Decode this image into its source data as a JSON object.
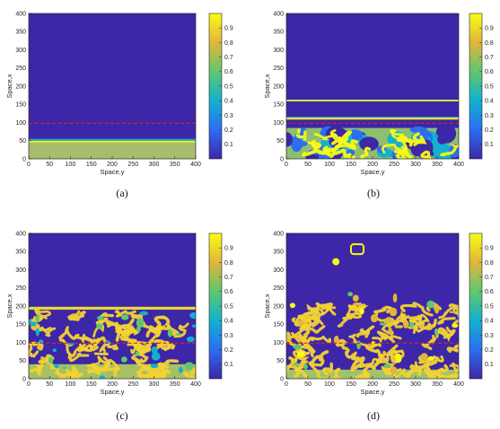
{
  "chart_data": [
    {
      "type": "heatmap",
      "caption": "(a)",
      "xlabel": "Space,y",
      "ylabel": "Space,x",
      "xlim": [
        0,
        400
      ],
      "ylim": [
        0,
        400
      ],
      "xticks": [
        0,
        50,
        100,
        150,
        200,
        250,
        300,
        350,
        400
      ],
      "yticks": [
        0,
        50,
        100,
        150,
        200,
        250,
        300,
        350,
        400
      ],
      "colorbar_ticks": [
        0.1,
        0.2,
        0.3,
        0.4,
        0.5,
        0.6,
        0.7,
        0.8,
        0.9
      ],
      "colorbar_range": [
        0,
        1
      ],
      "colormap": [
        "#3e26a8",
        "#2b6ef2",
        "#12b1cf",
        "#5fc86e",
        "#e0b63b",
        "#f9fb14"
      ],
      "background_value": 0.02,
      "reference_line": {
        "x": 98,
        "color": "#d62728",
        "style": "dashed"
      },
      "pattern": "flat band: x 0-45 at 0.6, bright front at x 45-55"
    },
    {
      "type": "heatmap",
      "caption": "(b)",
      "xlabel": "Space,y",
      "ylabel": "Space,x",
      "xlim": [
        0,
        400
      ],
      "ylim": [
        0,
        400
      ],
      "xticks": [
        0,
        50,
        100,
        150,
        200,
        250,
        300,
        350,
        400
      ],
      "yticks": [
        0,
        50,
        100,
        150,
        200,
        250,
        300,
        350,
        400
      ],
      "colorbar_ticks": [
        0.1,
        0.2,
        0.3,
        0.4,
        0.5,
        0.6,
        0.7,
        0.8,
        0.9
      ],
      "colorbar_range": [
        0,
        1
      ],
      "colormap": [
        "#3e26a8",
        "#2b6ef2",
        "#12b1cf",
        "#5fc86e",
        "#e0b63b",
        "#f9fb14"
      ],
      "background_value": 0.02,
      "reference_line": {
        "x": 98,
        "color": "#d62728",
        "style": "dashed"
      },
      "pattern": "patterned zone x 0-85, bands at x 110 and x 160"
    },
    {
      "type": "heatmap",
      "caption": "(c)",
      "xlabel": "Space,y",
      "ylabel": "Space,x",
      "xlim": [
        0,
        400
      ],
      "ylim": [
        0,
        400
      ],
      "xticks": [
        0,
        50,
        100,
        150,
        200,
        250,
        300,
        350,
        400
      ],
      "yticks": [
        0,
        50,
        100,
        150,
        200,
        250,
        300,
        350,
        400
      ],
      "colorbar_ticks": [
        0.1,
        0.2,
        0.3,
        0.4,
        0.5,
        0.6,
        0.7,
        0.8,
        0.9
      ],
      "colorbar_range": [
        0,
        1
      ],
      "colormap": [
        "#3e26a8",
        "#2b6ef2",
        "#12b1cf",
        "#5fc86e",
        "#e0b63b",
        "#f9fb14"
      ],
      "background_value": 0.02,
      "reference_line": {
        "x": 98,
        "color": "#d62728",
        "style": "dashed"
      },
      "pattern": "labyrinth pattern x 0-185, band at x 195"
    },
    {
      "type": "heatmap",
      "caption": "(d)",
      "xlabel": "Space,y",
      "ylabel": "Space,x",
      "xlim": [
        0,
        400
      ],
      "ylim": [
        0,
        400
      ],
      "xticks": [
        0,
        50,
        100,
        150,
        200,
        250,
        300,
        350,
        400
      ],
      "yticks": [
        0,
        50,
        100,
        150,
        200,
        250,
        300,
        350,
        400
      ],
      "colorbar_ticks": [
        0.1,
        0.2,
        0.3,
        0.4,
        0.5,
        0.6,
        0.7,
        0.8,
        0.9
      ],
      "colorbar_range": [
        0,
        1
      ],
      "colormap": [
        "#3e26a8",
        "#2b6ef2",
        "#12b1cf",
        "#5fc86e",
        "#e0b63b",
        "#f9fb14"
      ],
      "background_value": 0.02,
      "reference_line": {
        "x": 98,
        "color": "#d62728",
        "style": "dashed"
      },
      "pattern": "labyrinth pattern x 0-230 with scattered spots and rings above"
    }
  ]
}
